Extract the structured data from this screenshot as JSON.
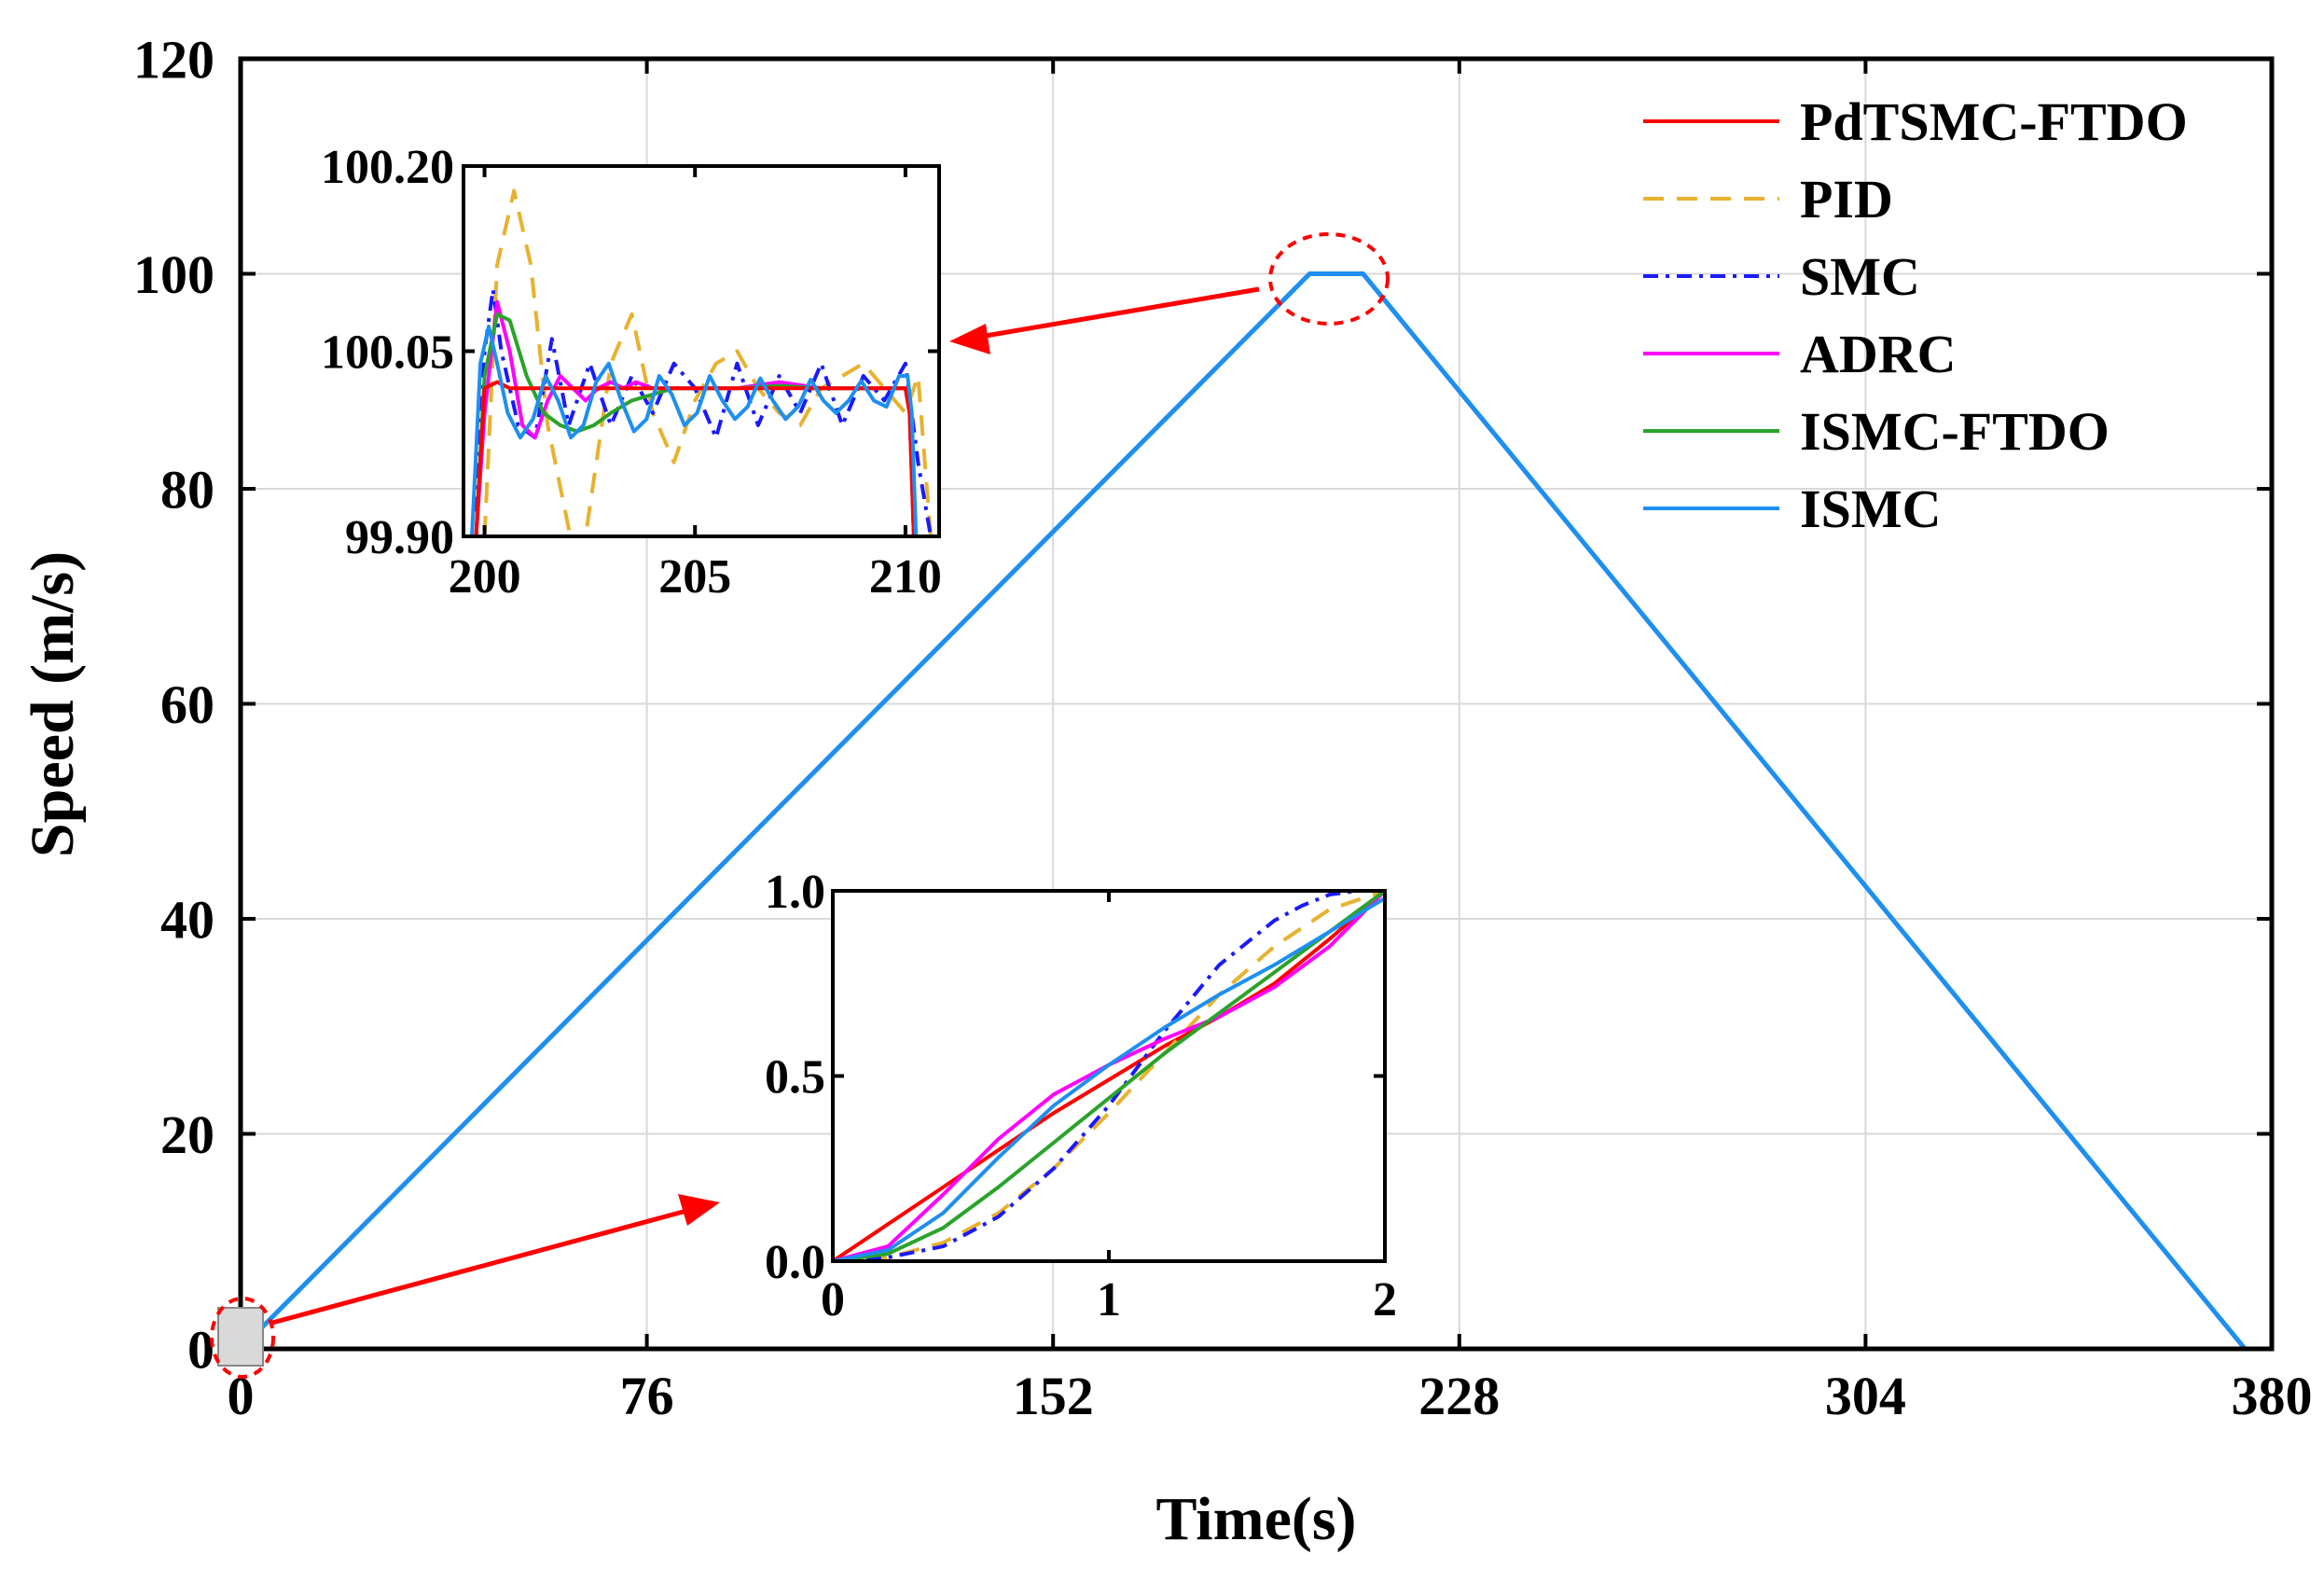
{
  "chart_data": {
    "type": "line",
    "xlabel": "Time(s)",
    "ylabel": "Speed (m/s)",
    "xlim": [
      0,
      380
    ],
    "ylim": [
      0,
      120
    ],
    "xticks": [
      "0",
      "76",
      "152",
      "228",
      "304",
      "380"
    ],
    "yticks": [
      "0",
      "20",
      "40",
      "60",
      "80",
      "100",
      "120"
    ],
    "grid": true,
    "legend_position": "top-right",
    "colors": {
      "PdTSMC-FTDO": "#ff0000",
      "PID": "#e8b22f",
      "SMC": "#1a1aff",
      "ADRC": "#ff00ff",
      "ISMC-FTDO": "#2aa32a",
      "ISMC": "#1e8ff0",
      "annotation": "#ff0000"
    },
    "legend": [
      "PdTSMC-FTDO",
      "PID",
      "SMC",
      "ADRC",
      "ISMC-FTDO",
      "ISMC"
    ],
    "main_series": {
      "name": "ISMC",
      "x": [
        0,
        200,
        210,
        375
      ],
      "y": [
        0,
        100,
        100,
        0
      ]
    },
    "inset_peak": {
      "xlim": [
        199.5,
        210.8
      ],
      "ylim": [
        99.9,
        100.2
      ],
      "xticks": [
        "200",
        "205",
        "210"
      ],
      "yticks": [
        "99.90",
        "100.05",
        "100.20"
      ],
      "series": [
        {
          "name": "PID",
          "x": [
            200,
            200.3,
            200.7,
            201.1,
            201.5,
            201.8,
            202.1,
            202.4,
            202.7,
            203.0,
            203.5,
            204.0,
            204.5,
            205.0,
            205.5,
            206.0,
            206.5,
            207.0,
            207.5,
            208.0,
            208.5,
            209.0,
            209.5,
            210.0,
            210.3,
            210.6
          ],
          "y": [
            99.9,
            100.12,
            100.18,
            100.12,
            99.99,
            99.94,
            99.89,
            99.9,
            99.97,
            100.04,
            100.08,
            100.0,
            99.96,
            100.01,
            100.04,
            100.05,
            100.02,
            100.0,
            99.99,
            100.02,
            100.03,
            100.04,
            100.02,
            100.0,
            100.03,
            99.9
          ]
        },
        {
          "name": "SMC",
          "x": [
            199.8,
            200.0,
            200.2,
            200.4,
            200.8,
            201.2,
            201.6,
            202.0,
            202.5,
            203.0,
            203.5,
            204.0,
            204.5,
            205.0,
            205.5,
            206.0,
            206.5,
            207.0,
            207.5,
            208.0,
            208.5,
            209.0,
            209.5,
            210.0,
            210.3,
            210.6
          ],
          "y": [
            99.92,
            100.05,
            100.1,
            100.05,
            99.99,
            99.98,
            100.06,
            99.99,
            100.04,
            99.99,
            100.03,
            100.0,
            100.04,
            100.02,
            99.98,
            100.04,
            99.99,
            100.03,
            100.0,
            100.04,
            99.99,
            100.03,
            100.01,
            100.04,
            99.96,
            99.9
          ]
        },
        {
          "name": "ADRC",
          "x": [
            199.8,
            200.0,
            200.3,
            200.6,
            200.9,
            201.2,
            201.5,
            201.8,
            202.1,
            202.4,
            202.7,
            203.0,
            203.3,
            203.6,
            204.0,
            204.5,
            205.0,
            206.0,
            207.0,
            208.0,
            209.0,
            210.0,
            210.1,
            210.2
          ],
          "y": [
            99.9,
            100.0,
            100.09,
            100.05,
            99.99,
            99.98,
            100.01,
            100.03,
            100.02,
            100.01,
            100.02,
            100.025,
            100.02,
            100.025,
            100.02,
            100.02,
            100.02,
            100.02,
            100.025,
            100.02,
            100.02,
            100.02,
            100.0,
            99.9
          ]
        },
        {
          "name": "ISMC-FTDO",
          "x": [
            199.8,
            200.0,
            200.3,
            200.6,
            201.0,
            201.4,
            201.8,
            202.2,
            202.6,
            203.0,
            203.5,
            204.0,
            204.5,
            205.0,
            205.5,
            206.0,
            207.0,
            208.0,
            209.0,
            210.0,
            210.1,
            210.2
          ],
          "y": [
            99.9,
            100.03,
            100.08,
            100.075,
            100.03,
            100.0,
            99.99,
            99.985,
            99.99,
            100.0,
            100.01,
            100.015,
            100.02,
            100.02,
            100.02,
            100.02,
            100.022,
            100.02,
            100.02,
            100.02,
            100.0,
            99.9
          ]
        },
        {
          "name": "PdTSMC-FTDO",
          "x": [
            199.8,
            200.0,
            200.3,
            200.6,
            201.0,
            202.0,
            203.0,
            204.0,
            205.0,
            206.0,
            207.0,
            208.0,
            209.0,
            210.0,
            210.1,
            210.2
          ],
          "y": [
            99.9,
            100.02,
            100.025,
            100.02,
            100.02,
            100.02,
            100.02,
            100.02,
            100.02,
            100.02,
            100.02,
            100.02,
            100.02,
            100.02,
            100.0,
            99.9
          ]
        },
        {
          "name": "ISMC",
          "x": [
            199.7,
            199.9,
            200.1,
            200.3,
            200.55,
            200.85,
            201.15,
            201.45,
            201.75,
            202.05,
            202.35,
            202.65,
            202.95,
            203.25,
            203.55,
            203.85,
            204.15,
            204.45,
            204.75,
            205.05,
            205.35,
            205.65,
            205.95,
            206.25,
            206.55,
            206.85,
            207.15,
            207.45,
            207.75,
            208.05,
            208.35,
            208.65,
            208.95,
            209.25,
            209.55,
            209.85,
            210.05,
            210.15,
            210.25
          ],
          "y": [
            99.9,
            100.04,
            100.07,
            100.04,
            100.0,
            99.98,
            99.995,
            100.03,
            100.01,
            99.98,
            99.99,
            100.025,
            100.04,
            100.01,
            99.985,
            99.995,
            100.03,
            100.015,
            99.99,
            100.0,
            100.03,
            100.01,
            99.995,
            100.005,
            100.028,
            100.01,
            99.995,
            100.005,
            100.027,
            100.01,
            100.0,
            100.01,
            100.026,
            100.01,
            100.005,
            100.03,
            100.03,
            100.0,
            99.9
          ]
        }
      ]
    },
    "inset_start": {
      "xlim": [
        0,
        2
      ],
      "ylim": [
        0,
        1
      ],
      "xticks": [
        "0",
        "1",
        "2"
      ],
      "yticks": [
        "0.0",
        "0.5",
        "1.0"
      ],
      "series": [
        {
          "name": "PdTSMC-FTDO",
          "x": [
            0,
            0.1,
            0.2,
            0.4,
            0.6,
            0.8,
            1.0,
            1.2,
            1.4,
            1.6,
            1.8,
            2.0
          ],
          "y": [
            0,
            0.05,
            0.1,
            0.2,
            0.3,
            0.4,
            0.49,
            0.58,
            0.66,
            0.75,
            0.87,
            1.0
          ]
        },
        {
          "name": "PID",
          "x": [
            0,
            0.2,
            0.4,
            0.6,
            0.8,
            1.0,
            1.2,
            1.4,
            1.6,
            1.8,
            2.0
          ],
          "y": [
            0,
            0.01,
            0.05,
            0.13,
            0.25,
            0.4,
            0.56,
            0.72,
            0.85,
            0.95,
            1.0
          ]
        },
        {
          "name": "SMC",
          "x": [
            0,
            0.2,
            0.4,
            0.6,
            0.8,
            1.0,
            1.2,
            1.4,
            1.6,
            1.7,
            1.8,
            1.9,
            2.0
          ],
          "y": [
            0,
            0.01,
            0.04,
            0.12,
            0.25,
            0.42,
            0.62,
            0.8,
            0.92,
            0.96,
            0.99,
            1.0,
            1.0
          ]
        },
        {
          "name": "ADRC",
          "x": [
            0,
            0.2,
            0.3,
            0.4,
            0.6,
            0.8,
            1.0,
            1.2,
            1.4,
            1.6,
            1.8,
            2.0
          ],
          "y": [
            0,
            0.04,
            0.11,
            0.18,
            0.33,
            0.45,
            0.53,
            0.6,
            0.66,
            0.74,
            0.85,
            1.0
          ]
        },
        {
          "name": "ISMC-FTDO",
          "x": [
            0,
            0.2,
            0.4,
            0.6,
            0.8,
            1.0,
            1.2,
            1.4,
            1.6,
            1.8,
            2.0
          ],
          "y": [
            0,
            0.02,
            0.09,
            0.2,
            0.32,
            0.44,
            0.56,
            0.67,
            0.78,
            0.89,
            1.0
          ]
        },
        {
          "name": "ISMC",
          "x": [
            0,
            0.2,
            0.4,
            0.6,
            0.8,
            1.0,
            1.2,
            1.4,
            1.6,
            1.8,
            2.0
          ],
          "y": [
            0,
            0.03,
            0.13,
            0.28,
            0.42,
            0.53,
            0.63,
            0.72,
            0.8,
            0.89,
            0.98
          ]
        }
      ]
    }
  }
}
